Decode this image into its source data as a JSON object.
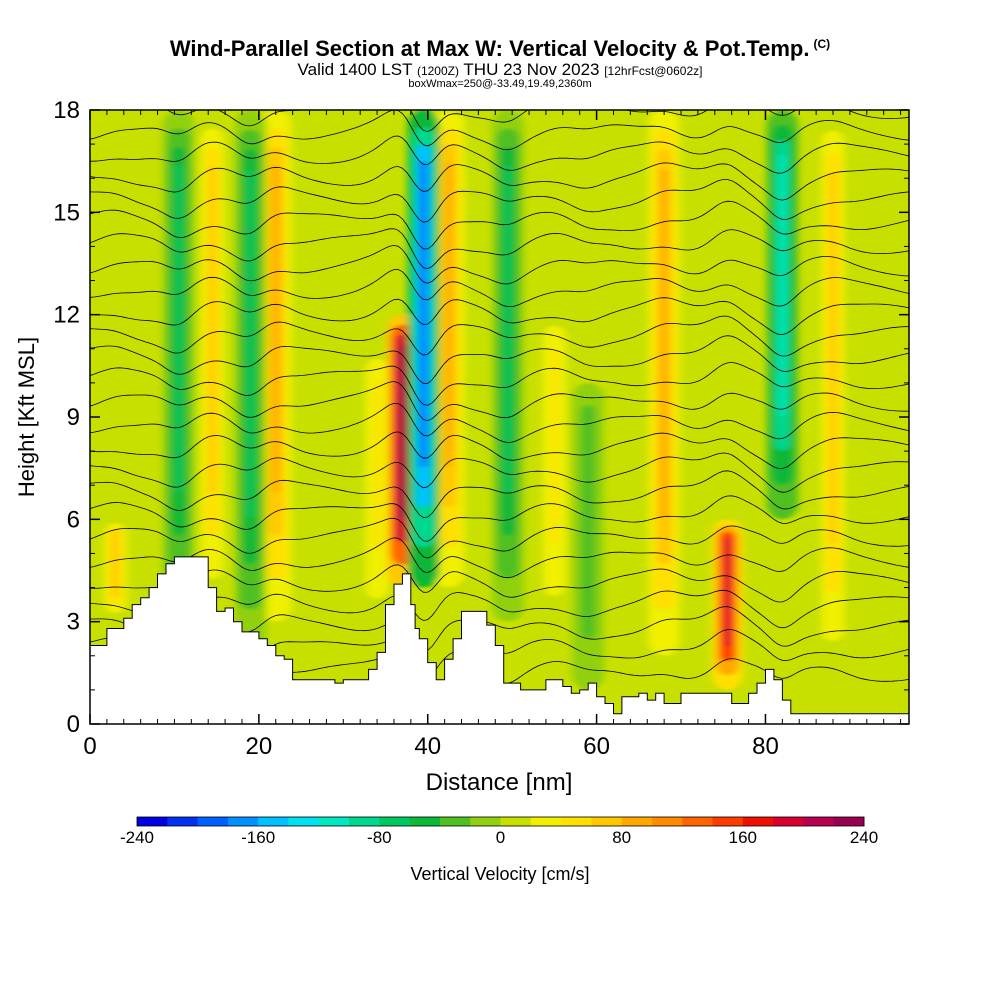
{
  "title": {
    "main": "Wind-Parallel Section at Max W: Vertical Velocity & Pot.Temp.",
    "copyright": "(C)",
    "valid_prefix": "Valid 1400 LST",
    "valid_utc": "(1200Z)",
    "valid_date": "THU 23 Nov 2023",
    "forecast": "[12hrFcst@0602z]",
    "box_info": "boxWmax=250@-33.49,19.49,2360m"
  },
  "chart_data": {
    "type": "heatmap",
    "xlabel": "Distance [nm]",
    "ylabel": "Height [Kft MSL]",
    "xlim": [
      0,
      97
    ],
    "ylim": [
      0,
      18
    ],
    "x_ticks": [
      "0",
      "20",
      "40",
      "60",
      "80"
    ],
    "y_ticks": [
      "0",
      "3",
      "6",
      "9",
      "12",
      "15",
      "18"
    ],
    "colorbar": {
      "label": "Vertical Velocity [cm/s]",
      "ticks": [
        "-240",
        "-160",
        "-80",
        "0",
        "80",
        "160",
        "240"
      ],
      "range": [
        -240,
        240
      ],
      "colors": [
        "#0000e0",
        "#0030f0",
        "#0060ff",
        "#0090ff",
        "#00c0ff",
        "#00e0f0",
        "#00e8c0",
        "#00d890",
        "#00c860",
        "#10b838",
        "#50c020",
        "#90d010",
        "#c8e000",
        "#f0f000",
        "#ffe000",
        "#ffc800",
        "#ffa800",
        "#ff8c00",
        "#ff6400",
        "#ff3c00",
        "#f01000",
        "#d80030",
        "#b80050",
        "#980050"
      ]
    },
    "terrain_kft": [
      [
        0,
        2.3
      ],
      [
        2,
        2.8
      ],
      [
        4,
        3.1
      ],
      [
        5,
        3.5
      ],
      [
        6,
        3.7
      ],
      [
        7,
        4.0
      ],
      [
        8,
        4.4
      ],
      [
        9,
        4.7
      ],
      [
        10,
        4.9
      ],
      [
        12,
        4.9
      ],
      [
        13,
        4.9
      ],
      [
        14,
        4.0
      ],
      [
        15,
        3.3
      ],
      [
        16,
        3.4
      ],
      [
        17,
        3.0
      ],
      [
        18,
        2.7
      ],
      [
        19,
        2.7
      ],
      [
        20,
        2.5
      ],
      [
        21,
        2.3
      ],
      [
        22,
        2.0
      ],
      [
        23,
        1.9
      ],
      [
        24,
        1.3
      ],
      [
        26,
        1.3
      ],
      [
        27,
        1.3
      ],
      [
        28,
        1.3
      ],
      [
        29,
        1.2
      ],
      [
        30,
        1.3
      ],
      [
        31,
        1.3
      ],
      [
        32,
        1.3
      ],
      [
        33,
        1.6
      ],
      [
        34,
        2.1
      ],
      [
        35,
        3.5
      ],
      [
        36,
        4.1
      ],
      [
        37,
        4.4
      ],
      [
        38,
        3.5
      ],
      [
        38.5,
        2.8
      ],
      [
        39,
        2.5
      ],
      [
        40,
        1.8
      ],
      [
        41,
        1.3
      ],
      [
        42,
        1.9
      ],
      [
        43,
        2.5
      ],
      [
        44,
        3.3
      ],
      [
        46,
        3.3
      ],
      [
        47,
        2.9
      ],
      [
        48,
        2.3
      ],
      [
        49,
        1.2
      ],
      [
        51,
        1.0
      ],
      [
        53,
        1.0
      ],
      [
        54,
        1.3
      ],
      [
        55,
        1.3
      ],
      [
        56,
        1.1
      ],
      [
        57,
        0.9
      ],
      [
        58,
        1.0
      ],
      [
        59,
        1.2
      ],
      [
        60,
        0.8
      ],
      [
        61,
        0.6
      ],
      [
        62,
        0.3
      ],
      [
        63,
        0.8
      ],
      [
        64,
        0.8
      ],
      [
        65,
        0.9
      ],
      [
        66,
        0.7
      ],
      [
        67,
        0.9
      ],
      [
        68,
        0.6
      ],
      [
        70,
        0.9
      ],
      [
        72,
        0.9
      ],
      [
        74,
        0.9
      ],
      [
        76,
        0.6
      ],
      [
        78,
        0.9
      ],
      [
        79,
        1.2
      ],
      [
        80,
        1.6
      ],
      [
        81,
        1.3
      ],
      [
        82,
        0.7
      ],
      [
        83,
        0.3
      ],
      [
        97,
        0.3
      ]
    ],
    "updraft_columns": [
      {
        "x": 3,
        "peak_cms": 60,
        "height_range": [
          3,
          6
        ]
      },
      {
        "x": 14.5,
        "peak_cms": 70,
        "height_range": [
          3,
          18
        ]
      },
      {
        "x": 22,
        "peak_cms": 80,
        "height_range": [
          3,
          18
        ]
      },
      {
        "x": 34,
        "peak_cms": 40,
        "height_range": [
          3,
          11
        ]
      },
      {
        "x": 37,
        "peak_cms": 240,
        "height_range": [
          4,
          12
        ]
      },
      {
        "x": 42.5,
        "peak_cms": 90,
        "height_range": [
          4,
          18
        ]
      },
      {
        "x": 55,
        "peak_cms": 50,
        "height_range": [
          3,
          12
        ]
      },
      {
        "x": 68,
        "peak_cms": 90,
        "height_range": [
          2,
          18
        ]
      },
      {
        "x": 75.5,
        "peak_cms": 190,
        "height_range": [
          1,
          6
        ]
      },
      {
        "x": 88,
        "peak_cms": 60,
        "height_range": [
          1,
          18
        ]
      }
    ],
    "downdraft_columns": [
      {
        "x": 10.5,
        "peak_cms": -80,
        "height_range": [
          3,
          18
        ]
      },
      {
        "x": 19,
        "peak_cms": -70,
        "height_range": [
          2,
          18
        ]
      },
      {
        "x": 39.5,
        "peak_cms": -200,
        "height_range": [
          4,
          18
        ]
      },
      {
        "x": 49.5,
        "peak_cms": -70,
        "height_range": [
          3,
          18
        ]
      },
      {
        "x": 82,
        "peak_cms": -110,
        "height_range": [
          6,
          18
        ]
      },
      {
        "x": 59,
        "peak_cms": -30,
        "height_range": [
          1,
          10
        ]
      }
    ],
    "isentrope_count": 26
  },
  "colors": {
    "background_field": "#c8e000",
    "terrain": "#ffffff",
    "contour": "#000000"
  }
}
